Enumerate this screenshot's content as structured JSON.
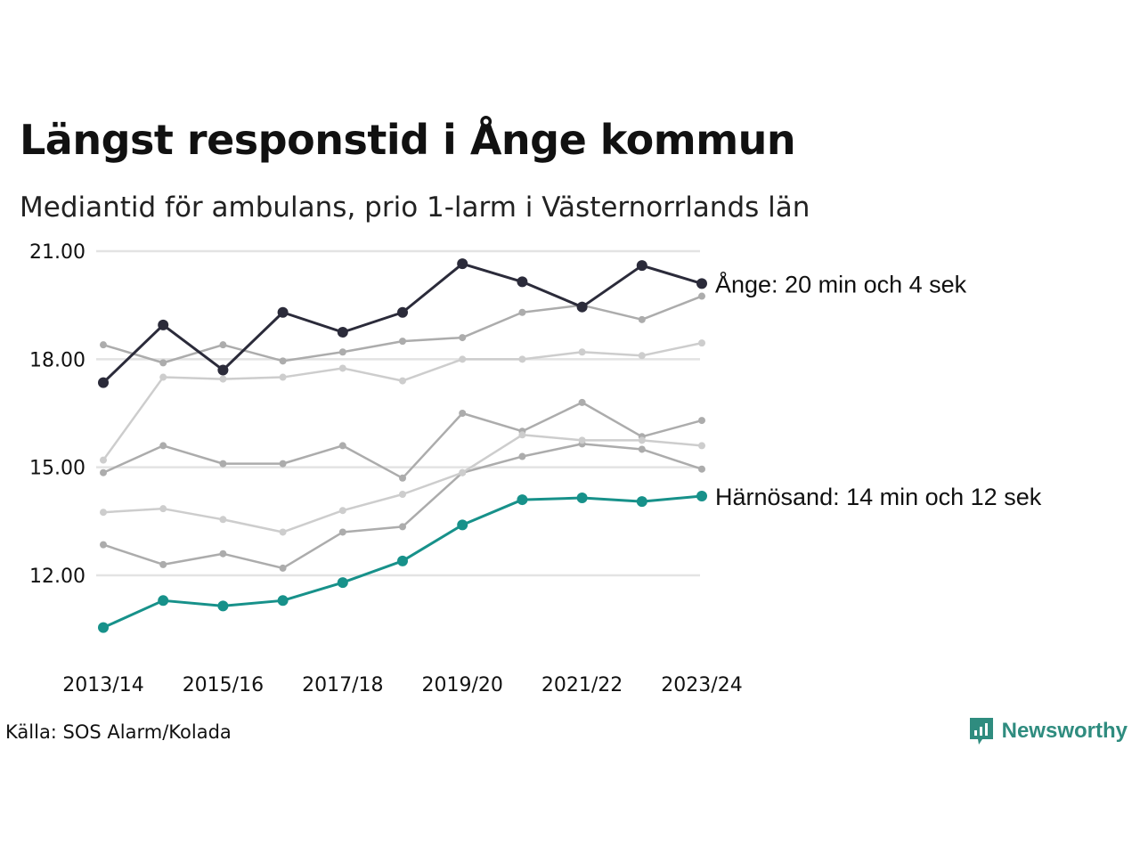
{
  "header": {
    "title": "Längst responstid i Ånge kommun",
    "subtitle": "Mediantid för ambulans, prio 1-larm i Västernorrlands län"
  },
  "footer": {
    "source": "Källa: SOS Alarm/Kolada",
    "brand": "Newsworthy",
    "brand_icon": "newsworthy-logo-icon"
  },
  "colors": {
    "highlight_dark": "#2b2b3a",
    "highlight_teal": "#17918a",
    "grey_mid": "#acacac",
    "grey_light": "#cdcdcd",
    "grid": "#e3e3e3",
    "brand": "#2f8c7f"
  },
  "chart_data": {
    "type": "line",
    "x": [
      "2013/14",
      "2014/15",
      "2015/16",
      "2016/17",
      "2017/18",
      "2018/19",
      "2019/20",
      "2020/21",
      "2021/22",
      "2022/23",
      "2023/24"
    ],
    "x_tick_labels": [
      "2013/14",
      "2015/16",
      "2017/18",
      "2019/20",
      "2021/22",
      "2023/24"
    ],
    "y_ticks": [
      "12.00",
      "15.00",
      "18.00",
      "21.00"
    ],
    "ylim": [
      10.0,
      21.0
    ],
    "grid": true,
    "series": [
      {
        "id": "grey1",
        "color": "#acacac",
        "values": [
          18.4,
          17.9,
          18.4,
          17.95,
          18.2,
          18.5,
          18.6,
          19.3,
          19.5,
          19.1,
          19.75
        ]
      },
      {
        "id": "grey2",
        "color": "#cdcdcd",
        "values": [
          15.2,
          17.5,
          17.45,
          17.5,
          17.75,
          17.4,
          18.0,
          18.0,
          18.2,
          18.1,
          18.45
        ]
      },
      {
        "id": "grey3",
        "color": "#acacac",
        "values": [
          14.85,
          15.6,
          15.1,
          15.1,
          15.6,
          14.7,
          16.5,
          16.0,
          16.8,
          15.85,
          16.3
        ]
      },
      {
        "id": "grey4",
        "color": "#acacac",
        "values": [
          12.85,
          12.3,
          12.6,
          12.2,
          13.2,
          13.35,
          14.85,
          15.3,
          15.65,
          15.5,
          14.95
        ]
      },
      {
        "id": "grey5",
        "color": "#cdcdcd",
        "values": [
          13.75,
          13.85,
          13.55,
          13.2,
          13.8,
          14.25,
          14.85,
          15.9,
          15.75,
          15.75,
          15.6
        ]
      },
      {
        "id": "ange",
        "name": "Ånge",
        "label": "Ånge: 20 min och 4 sek",
        "color": "#2b2b3a",
        "highlight": true,
        "values": [
          17.35,
          18.95,
          17.7,
          19.3,
          18.75,
          19.3,
          20.65,
          20.15,
          19.45,
          20.6,
          20.1
        ]
      },
      {
        "id": "harnosand",
        "name": "Härnösand",
        "label": "Härnösand: 14 min och 12 sek",
        "color": "#17918a",
        "highlight": true,
        "values": [
          10.55,
          11.3,
          11.15,
          11.3,
          11.8,
          12.4,
          13.4,
          14.1,
          14.15,
          14.05,
          14.2
        ]
      }
    ]
  }
}
